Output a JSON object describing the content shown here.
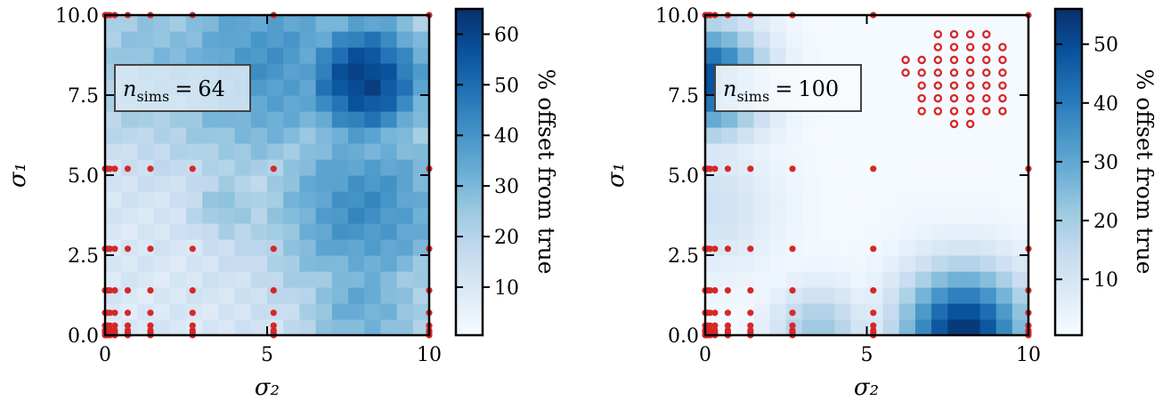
{
  "chart_data": [
    {
      "type": "heatmap",
      "xlabel": "σ₂",
      "ylabel": "σ₁",
      "xlim": [
        0,
        10
      ],
      "ylim": [
        0,
        10
      ],
      "x_ticks": [
        "0",
        "5",
        "10"
      ],
      "y_ticks": [
        "0.0",
        "2.5",
        "5.0",
        "7.5",
        "10.0"
      ],
      "annotation": {
        "symbol": "n",
        "subscript": "sims",
        "relation": "=",
        "value": "64"
      },
      "colorbar": {
        "label": "% offset from true",
        "ticks": [
          10,
          20,
          30,
          40,
          50,
          60
        ],
        "range": [
          0.5,
          65
        ],
        "colormap": "Blues"
      },
      "heat_peaks": [
        {
          "sigma2": 8.0,
          "sigma1": 8.0,
          "value": 62,
          "spread": 1.5
        },
        {
          "sigma2": 8.0,
          "sigma1": 4.0,
          "value": 42,
          "spread": 2.2
        },
        {
          "sigma2": 5.0,
          "sigma1": 8.5,
          "value": 40,
          "spread": 2.5
        },
        {
          "sigma2": 2.0,
          "sigma1": 8.5,
          "value": 30,
          "spread": 2.0
        },
        {
          "sigma2": 3.8,
          "sigma1": 4.0,
          "value": 28,
          "spread": 0.8
        },
        {
          "sigma2": 8.0,
          "sigma1": 1.0,
          "value": 34,
          "spread": 1.5
        }
      ],
      "heat_base": 10,
      "grid_sigma": [
        0.0,
        0.07,
        0.15,
        0.3,
        0.7,
        1.4,
        2.7,
        5.2,
        10.0
      ],
      "sample_points": {
        "style": "filled",
        "color": "#d62728"
      }
    },
    {
      "type": "heatmap",
      "xlabel": "σ₂",
      "ylabel": "σ₁",
      "xlim": [
        0,
        10
      ],
      "ylim": [
        0,
        10
      ],
      "x_ticks": [
        "0",
        "5",
        "10"
      ],
      "y_ticks": [
        "0.0",
        "2.5",
        "5.0",
        "7.5",
        "10.0"
      ],
      "annotation": {
        "symbol": "n",
        "subscript": "sims",
        "relation": "=",
        "value": "100"
      },
      "colorbar": {
        "label": "% offset from true",
        "ticks": [
          10,
          20,
          30,
          40,
          50
        ],
        "range": [
          0.5,
          56
        ],
        "colormap": "Blues"
      },
      "heat_peaks": [
        {
          "sigma2": 8.0,
          "sigma1": 0.1,
          "value": 55,
          "spread": 1.4
        },
        {
          "sigma2": 3.5,
          "sigma1": 0.1,
          "value": 22,
          "spread": 1.0
        },
        {
          "sigma2": 0.1,
          "sigma1": 8.0,
          "value": 50,
          "spread": 1.2
        },
        {
          "sigma2": 0.1,
          "sigma1": 4.0,
          "value": 12,
          "spread": 1.5
        },
        {
          "sigma2": 7.5,
          "sigma1": 1.2,
          "value": 8,
          "spread": 1.5
        }
      ],
      "heat_base": 1,
      "grid_sigma": [
        0.0,
        0.07,
        0.15,
        0.3,
        0.7,
        1.4,
        2.7,
        5.2,
        10.0
      ],
      "sample_points": {
        "style": "filled",
        "color": "#d62728"
      },
      "open_points": {
        "style": "open",
        "color": "#d62728",
        "sigma2_values": [
          6.2,
          6.7,
          7.2,
          7.7,
          8.2,
          8.7,
          9.2
        ],
        "sigma1_values": [
          9.4,
          9.0,
          8.6,
          8.2,
          7.8,
          7.4,
          7.0,
          6.6,
          6.2
        ],
        "rows": [
          [
            8.2,
            7.7,
            7.2,
            8.7
          ],
          [
            7.2,
            7.7,
            8.2,
            8.7,
            9.2
          ],
          [
            6.2,
            6.7,
            7.2,
            7.7,
            8.2,
            8.7,
            9.2
          ],
          [
            6.2,
            6.7,
            7.2,
            7.7,
            8.2,
            8.7,
            9.2
          ],
          [
            6.7,
            7.2,
            7.7,
            8.2,
            8.7,
            9.2
          ],
          [
            6.7,
            7.2,
            7.7,
            8.2,
            8.7,
            9.2
          ],
          [
            6.7,
            7.2,
            7.7,
            8.2,
            8.7,
            9.2
          ],
          [
            7.7,
            8.2
          ]
        ],
        "row_sigma1": [
          9.4,
          9.0,
          8.6,
          8.2,
          7.8,
          7.4,
          7.0,
          6.6
        ]
      }
    }
  ]
}
